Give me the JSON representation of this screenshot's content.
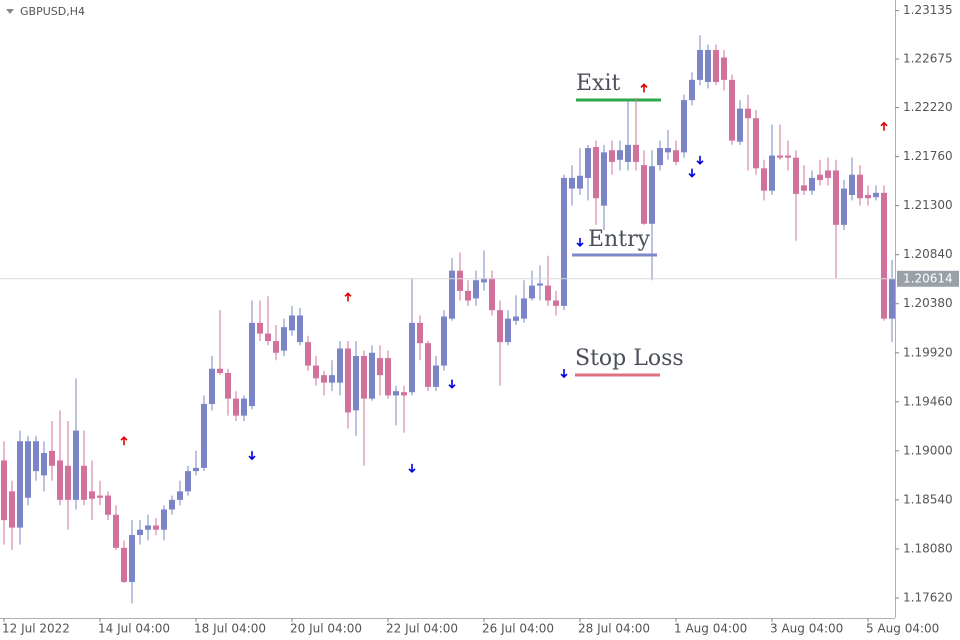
{
  "chart_data": {
    "type": "candlestick",
    "title": "GBPUSD,H4",
    "categories": [
      "12 Jul 2022",
      null,
      null,
      null,
      null,
      null,
      null,
      null,
      null,
      null,
      null,
      null,
      "14 Jul 04:00",
      null,
      null,
      null,
      null,
      null,
      null,
      null,
      null,
      null,
      null,
      null,
      "18 Jul 04:00",
      null,
      null,
      null,
      null,
      null,
      null,
      null,
      null,
      null,
      null,
      null,
      "20 Jul 04:00",
      null,
      null,
      null,
      null,
      null,
      null,
      null,
      null,
      null,
      null,
      null,
      "22 Jul 04:00",
      null,
      null,
      null,
      null,
      null,
      null,
      null,
      null,
      null,
      null,
      null,
      "26 Jul 04:00",
      null,
      null,
      null,
      null,
      null,
      null,
      null,
      null,
      null,
      null,
      null,
      "28 Jul 04:00",
      null,
      null,
      null,
      null,
      null,
      null,
      null,
      null,
      null,
      null,
      null,
      "1 Aug 04:00",
      null,
      null,
      null,
      null,
      null,
      null,
      null,
      null,
      null,
      null,
      null,
      "3 Aug 04:00",
      null,
      null,
      null,
      null,
      null,
      null,
      null,
      null,
      null,
      null,
      null,
      "5 Aug 04:00",
      null,
      null,
      null
    ],
    "candles": [
      [
        1.1891,
        1.1909,
        1.1812,
        1.1835
      ],
      [
        1.1862,
        1.1872,
        1.1807,
        1.1828
      ],
      [
        1.1828,
        1.1919,
        1.1812,
        1.1909
      ],
      [
        1.1856,
        1.1914,
        1.1849,
        1.1909
      ],
      [
        1.1881,
        1.1914,
        1.1872,
        1.1909
      ],
      [
        1.1877,
        1.1909,
        1.1862,
        1.1898
      ],
      [
        1.19,
        1.1928,
        1.1872,
        1.1886
      ],
      [
        1.1891,
        1.1938,
        1.1849,
        1.1854
      ],
      [
        1.1886,
        1.1928,
        1.1826,
        1.1854
      ],
      [
        1.1854,
        1.1968,
        1.1845,
        1.1919
      ],
      [
        1.1886,
        1.1919,
        1.1849,
        1.1854
      ],
      [
        1.1862,
        1.1891,
        1.1835,
        1.1855
      ],
      [
        1.1858,
        1.1872,
        1.1849,
        1.1856
      ],
      [
        1.1858,
        1.1862,
        1.1835,
        1.184
      ],
      [
        1.184,
        1.1849,
        1.1807,
        1.1809
      ],
      [
        1.1809,
        1.1816,
        1.1776,
        1.1777
      ],
      [
        1.1777,
        1.1835,
        1.1757,
        1.1821
      ],
      [
        1.1821,
        1.1835,
        1.1812,
        1.1826
      ],
      [
        1.1826,
        1.184,
        1.1816,
        1.183
      ],
      [
        1.183,
        1.1837,
        1.1821,
        1.1826
      ],
      [
        1.1826,
        1.1849,
        1.1816,
        1.1845
      ],
      [
        1.1845,
        1.1858,
        1.184,
        1.1854
      ],
      [
        1.1854,
        1.1872,
        1.1849,
        1.1862
      ],
      [
        1.1862,
        1.1886,
        1.1858,
        1.1881
      ],
      [
        1.1881,
        1.19,
        1.1877,
        1.1884
      ],
      [
        1.1884,
        1.1952,
        1.1881,
        1.1944
      ],
      [
        1.1944,
        1.1989,
        1.1938,
        1.1977
      ],
      [
        1.1977,
        1.2032,
        1.1971,
        1.1973
      ],
      [
        1.1973,
        1.1977,
        1.1933,
        1.1949
      ],
      [
        1.1949,
        1.1956,
        1.1928,
        1.1933
      ],
      [
        1.1933,
        1.1952,
        1.1928,
        1.1949
      ],
      [
        1.1942,
        1.2041,
        1.1939,
        1.202
      ],
      [
        1.202,
        1.2041,
        1.2003,
        1.201
      ],
      [
        1.201,
        1.2045,
        1.1999,
        1.2003
      ],
      [
        1.2003,
        1.2018,
        1.1985,
        1.1992
      ],
      [
        1.1994,
        1.2024,
        1.1989,
        1.2016
      ],
      [
        1.2013,
        1.2036,
        1.2008,
        1.2027
      ],
      [
        1.2002,
        1.2034,
        1.1999,
        1.2027
      ],
      [
        1.2002,
        1.2008,
        1.1975,
        1.198
      ],
      [
        1.198,
        1.1989,
        1.1961,
        1.1968
      ],
      [
        1.1971,
        1.1975,
        1.1952,
        1.1964
      ],
      [
        1.1964,
        1.1985,
        1.1956,
        1.1971
      ],
      [
        1.1964,
        1.2003,
        1.1952,
        1.1996
      ],
      [
        1.1996,
        1.2003,
        1.1921,
        1.1936
      ],
      [
        1.1938,
        1.2003,
        1.1914,
        1.1989
      ],
      [
        1.1989,
        1.1994,
        1.1886,
        1.1949
      ],
      [
        1.1949,
        1.1999,
        1.1947,
        1.1992
      ],
      [
        1.1987,
        1.1999,
        1.1952,
        1.1971
      ],
      [
        1.1987,
        1.1994,
        1.1949,
        1.1952
      ],
      [
        1.1952,
        1.1961,
        1.1924,
        1.1956
      ],
      [
        1.1955,
        1.1961,
        1.1917,
        1.1952
      ],
      [
        1.1955,
        1.2062,
        1.1952,
        1.202
      ],
      [
        1.202,
        1.2027,
        1.1985,
        1.2001
      ],
      [
        1.2001,
        1.2003,
        1.1956,
        1.196
      ],
      [
        1.196,
        1.1989,
        1.1956,
        1.198
      ],
      [
        1.198,
        1.2032,
        1.1975,
        1.2026
      ],
      [
        1.2024,
        1.2081,
        1.2022,
        1.2069
      ],
      [
        1.2069,
        1.2086,
        1.2041,
        1.205
      ],
      [
        1.205,
        1.206,
        1.2036,
        1.2041
      ],
      [
        1.2043,
        1.2069,
        1.2036,
        1.206
      ],
      [
        1.2058,
        1.2088,
        1.205,
        1.2062
      ],
      [
        1.2062,
        1.2069,
        1.2027,
        1.2032
      ],
      [
        1.2032,
        1.2041,
        1.1961,
        1.2002
      ],
      [
        1.2002,
        1.2032,
        1.1999,
        1.2024
      ],
      [
        1.2022,
        1.2046,
        1.2018,
        1.2026
      ],
      [
        1.2024,
        1.206,
        1.202,
        1.2043
      ],
      [
        1.2043,
        1.2069,
        1.2041,
        1.2055
      ],
      [
        1.2055,
        1.2074,
        1.2041,
        1.2057
      ],
      [
        1.2055,
        1.2083,
        1.2036,
        1.2041
      ],
      [
        1.2041,
        1.205,
        1.2027,
        1.2036
      ],
      [
        1.2036,
        1.2159,
        1.2032,
        1.2156
      ],
      [
        1.2146,
        1.2168,
        1.213,
        1.2156
      ],
      [
        1.2146,
        1.2184,
        1.214,
        1.2158
      ],
      [
        1.2156,
        1.2187,
        1.2135,
        1.2184
      ],
      [
        1.2185,
        1.2191,
        1.2112,
        1.2137
      ],
      [
        1.213,
        1.2187,
        1.2107,
        1.218
      ],
      [
        1.2182,
        1.2191,
        1.2159,
        1.2171
      ],
      [
        1.2173,
        1.2191,
        1.2163,
        1.2182
      ],
      [
        1.2171,
        1.2229,
        1.2163,
        1.2187
      ],
      [
        1.2187,
        1.2231,
        1.2163,
        1.2171
      ],
      [
        1.2168,
        1.2182,
        1.2112,
        1.2113
      ],
      [
        1.2113,
        1.2182,
        1.206,
        1.2167
      ],
      [
        1.2168,
        1.2191,
        1.2163,
        1.2184
      ],
      [
        1.218,
        1.2201,
        1.2173,
        1.2184
      ],
      [
        1.2182,
        1.2191,
        1.2168,
        1.2171
      ],
      [
        1.218,
        1.2234,
        1.2175,
        1.2229
      ],
      [
        1.2229,
        1.2255,
        1.2224,
        1.2248
      ],
      [
        1.2248,
        1.229,
        1.2243,
        1.2276
      ],
      [
        1.2246,
        1.2281,
        1.224,
        1.2276
      ],
      [
        1.2276,
        1.2281,
        1.2243,
        1.2246
      ],
      [
        1.2269,
        1.2276,
        1.2238,
        1.2248
      ],
      [
        1.2248,
        1.2253,
        1.2187,
        1.2191
      ],
      [
        1.219,
        1.2229,
        1.2187,
        1.2221
      ],
      [
        1.2221,
        1.2234,
        1.2163,
        1.2212
      ],
      [
        1.2212,
        1.222,
        1.2159,
        1.2165
      ],
      [
        1.2165,
        1.2173,
        1.2135,
        1.2144
      ],
      [
        1.2144,
        1.2206,
        1.214,
        1.2177
      ],
      [
        1.2177,
        1.2206,
        1.2173,
        1.2175
      ],
      [
        1.2177,
        1.2191,
        1.2163,
        1.2175
      ],
      [
        1.2175,
        1.2182,
        1.2097,
        1.2141
      ],
      [
        1.2149,
        1.2168,
        1.214,
        1.2144
      ],
      [
        1.2144,
        1.2163,
        1.214,
        1.2156
      ],
      [
        1.2159,
        1.2173,
        1.2149,
        1.2154
      ],
      [
        1.2163,
        1.2175,
        1.2149,
        1.2156
      ],
      [
        1.2163,
        1.2173,
        1.2062,
        1.2112
      ],
      [
        1.2112,
        1.2154,
        1.2107,
        1.2146
      ],
      [
        1.214,
        1.2175,
        1.2135,
        1.2159
      ],
      [
        1.2159,
        1.2168,
        1.213,
        1.2137
      ],
      [
        1.214,
        1.2149,
        1.213,
        1.2137
      ],
      [
        1.2138,
        1.2149,
        1.2135,
        1.2142
      ],
      [
        1.2142,
        1.2149,
        1.2022,
        1.2024
      ],
      [
        1.2024,
        1.2079,
        1.2002,
        1.20614
      ]
    ],
    "up_color": "#7a84c6",
    "down_color": "#d2719e",
    "buy_signals": {
      "x": [
        31,
        51,
        56,
        70,
        72,
        86,
        87
      ],
      "y": [
        1.1896,
        1.1884,
        1.1963,
        1.1973,
        1.2096,
        1.2161,
        1.2173
      ],
      "color": "#0000e0"
    },
    "sell_signals": {
      "x": [
        15,
        43,
        80,
        110
      ],
      "y": [
        1.1909,
        1.2044,
        1.224,
        1.2204
      ],
      "color": "#e00000"
    },
    "ylim": [
      1.17432,
      1.23229
    ],
    "yticks": [
      {
        "value": 1.2313,
        "label": "1.23135"
      },
      {
        "value": 1.22675,
        "label": "1.22675"
      },
      {
        "value": 1.2222,
        "label": "1.22220"
      },
      {
        "value": 1.2176,
        "label": "1.21760"
      },
      {
        "value": 1.213,
        "label": "1.21300"
      },
      {
        "value": 1.2084,
        "label": "1.20840"
      },
      {
        "value": 1.2038,
        "label": "1.20380"
      },
      {
        "value": 1.1992,
        "label": "1.19920"
      },
      {
        "value": 1.1946,
        "label": "1.19460"
      },
      {
        "value": 1.19,
        "label": "1.19000"
      },
      {
        "value": 1.1854,
        "label": "1.18540"
      },
      {
        "value": 1.1808,
        "label": "1.18080"
      },
      {
        "value": 1.1762,
        "label": "1.17620"
      }
    ],
    "annotations": [
      "Exit",
      "Entry",
      "Stop Loss"
    ]
  }
}
